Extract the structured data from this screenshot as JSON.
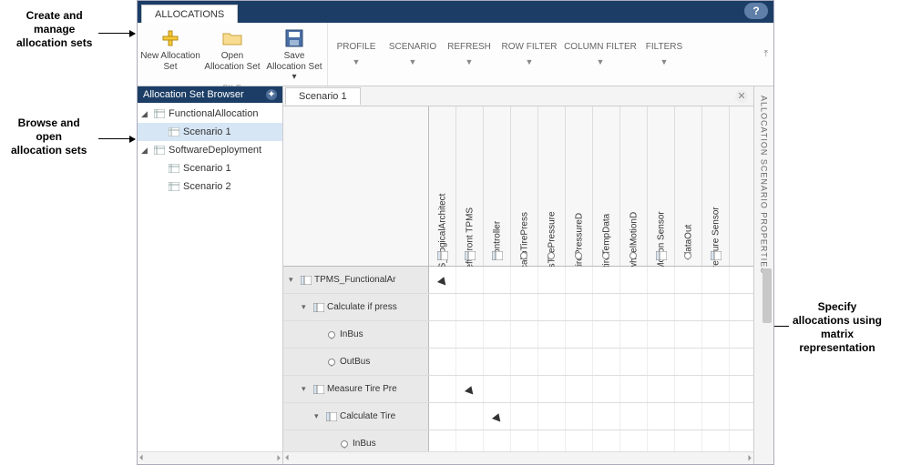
{
  "annotations": {
    "top": "Create and\nmanage\nallocation sets",
    "left": "Browse and\nopen\nallocation sets",
    "right": "Specify\nallocations using\nmatrix\nrepresentation"
  },
  "tabstrip": {
    "allocations": "ALLOCATIONS",
    "help": "?"
  },
  "ribbon": {
    "file_group_label": "FILE",
    "new": "New\nAllocation Set",
    "open": "Open\nAllocation Set",
    "save": "Save\nAllocation Set ▾",
    "profile": "PROFILE",
    "scenario": "SCENARIO",
    "refresh": "REFRESH",
    "rowfilter": "ROW FILTER",
    "colfilter": "COLUMN FILTER",
    "filters": "FILTERS"
  },
  "browser": {
    "title": "Allocation Set Browser",
    "items": [
      {
        "label": "FunctionalAllocation",
        "indent": 0,
        "toggle": "▲",
        "type": "set"
      },
      {
        "label": "Scenario 1",
        "indent": 1,
        "toggle": "",
        "type": "scenario",
        "selected": true
      },
      {
        "label": "SoftwareDeployment",
        "indent": 0,
        "toggle": "▲",
        "type": "set",
        "prefixIcon": true
      },
      {
        "label": "Scenario 1",
        "indent": 1,
        "toggle": "",
        "type": "scenario"
      },
      {
        "label": "Scenario 2",
        "indent": 1,
        "toggle": "",
        "type": "scenario"
      }
    ]
  },
  "scenarioTab": {
    "label": "Scenario 1"
  },
  "columns": [
    {
      "label": "TPMS_LogicalArchitect",
      "kind": "comp"
    },
    {
      "label": "Left Front TPMS",
      "kind": "comp"
    },
    {
      "label": "Controller",
      "kind": "comp"
    },
    {
      "label": "calibTirePress",
      "kind": "port"
    },
    {
      "label": "isTirePressure",
      "kind": "port"
    },
    {
      "label": "tirePressureD",
      "kind": "port"
    },
    {
      "label": "tireTempData",
      "kind": "port"
    },
    {
      "label": "wheelMotionD",
      "kind": "port"
    },
    {
      "label": "Motion Sensor",
      "kind": "comp"
    },
    {
      "label": "dataOut",
      "kind": "port"
    },
    {
      "label": "Pressure Sensor",
      "kind": "comp"
    }
  ],
  "rows": [
    {
      "label": "TPMS_FunctionalAr",
      "indent": 0,
      "kind": "comp",
      "toggle": "▾",
      "marks": [
        0
      ]
    },
    {
      "label": "Calculate if press",
      "indent": 1,
      "kind": "comp",
      "toggle": "▾",
      "marks": []
    },
    {
      "label": "InBus",
      "indent": 2,
      "kind": "port",
      "toggle": "",
      "marks": []
    },
    {
      "label": "OutBus",
      "indent": 2,
      "kind": "port",
      "toggle": "",
      "marks": []
    },
    {
      "label": "Measure Tire Pre",
      "indent": 1,
      "kind": "comp",
      "toggle": "▾",
      "marks": [
        1
      ]
    },
    {
      "label": "Calculate Tire",
      "indent": 2,
      "kind": "comp",
      "toggle": "▾",
      "marks": [
        2
      ]
    },
    {
      "label": "InBus",
      "indent": 3,
      "kind": "port",
      "toggle": "",
      "marks": []
    }
  ],
  "propsPanel": {
    "label": "ALLOCATION SCENARIO PROPERTIES"
  },
  "colors": {
    "navblue": "#1c3e66",
    "selected": "#d6e6f5",
    "rowheader": "#e9e9e9"
  }
}
